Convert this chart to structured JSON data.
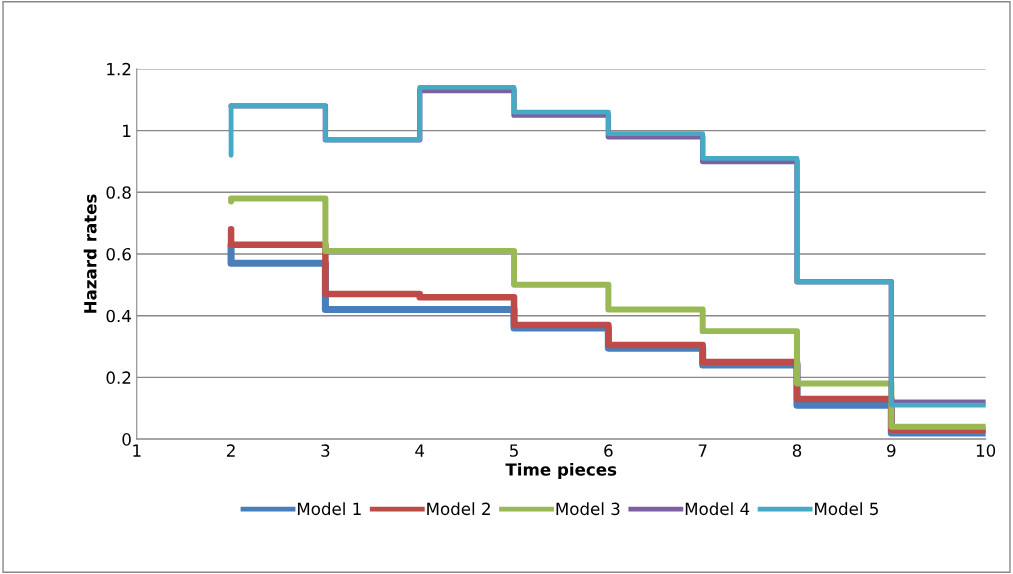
{
  "chart_data": {
    "type": "step",
    "xlabel": "Time pieces",
    "ylabel": "Hazard rates",
    "x": [
      2,
      2,
      3,
      4,
      5,
      6,
      7,
      8,
      9,
      10
    ],
    "series": [
      {
        "name": "Model 1",
        "color": "#4a7ebb",
        "values": [
          0.63,
          0.57,
          0.42,
          0.42,
          0.36,
          0.295,
          0.24,
          0.11,
          0.02,
          0.02
        ]
      },
      {
        "name": "Model 2",
        "color": "#be4b48",
        "values": [
          0.68,
          0.63,
          0.47,
          0.46,
          0.37,
          0.305,
          0.25,
          0.13,
          0.03,
          0.03
        ]
      },
      {
        "name": "Model 3",
        "color": "#98b954",
        "values": [
          0.77,
          0.78,
          0.61,
          0.61,
          0.5,
          0.42,
          0.35,
          0.18,
          0.04,
          0.04
        ]
      },
      {
        "name": "Model 4",
        "color": "#7d60a0",
        "values": [
          null,
          1.08,
          0.97,
          1.13,
          1.05,
          0.98,
          0.9,
          0.51,
          0.12,
          0.12
        ]
      },
      {
        "name": "Model 5",
        "color": "#46aac5",
        "values": [
          0.92,
          1.08,
          0.97,
          1.14,
          1.06,
          0.99,
          0.91,
          0.51,
          0.11,
          0.11
        ]
      }
    ],
    "xlim": [
      1,
      10
    ],
    "xticks": [
      1,
      2,
      3,
      4,
      5,
      6,
      7,
      8,
      9,
      10
    ],
    "ylim": [
      0,
      1.2
    ],
    "yticks": [
      0,
      0.2,
      0.4,
      0.6,
      0.8,
      1,
      1.2
    ],
    "grid": "y",
    "legend": "bottom"
  }
}
